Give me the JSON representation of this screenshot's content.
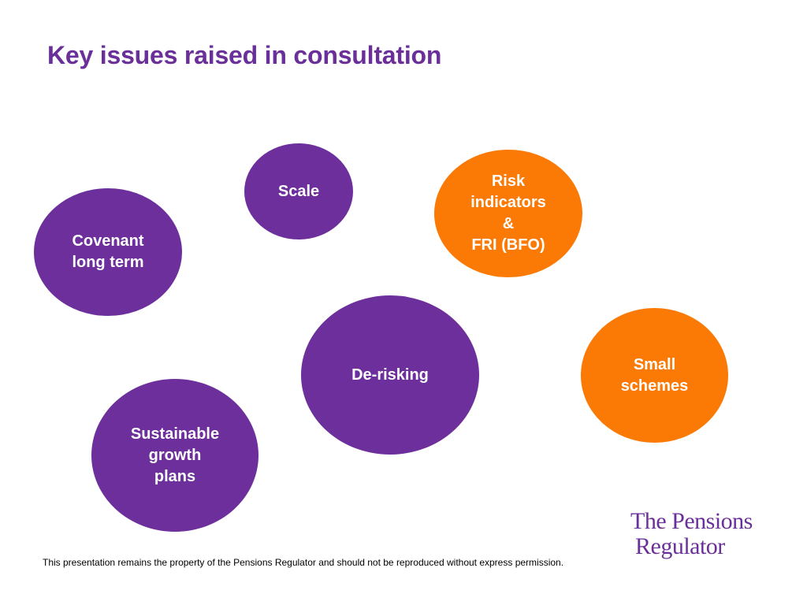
{
  "slide": {
    "title": "Key issues raised in consultation",
    "footer": "This presentation remains the property of the Pensions Regulator and should not be reproduced without express permission."
  },
  "colors": {
    "title": "#6a2f98",
    "purple_bubble": "#6d2f9c",
    "orange_bubble": "#fb7a05",
    "bubble_text": "#ffffff"
  },
  "bubbles": [
    {
      "label": "Scale",
      "color": "purple"
    },
    {
      "label": "Risk\nindicators\n&\nFRI (BFO)",
      "color": "orange"
    },
    {
      "label": "Covenant\nlong term",
      "color": "purple"
    },
    {
      "label": "De-risking",
      "color": "purple"
    },
    {
      "label": "Small\nschemes",
      "color": "orange"
    },
    {
      "label": "Sustainable\ngrowth\nplans",
      "color": "purple"
    }
  ],
  "logo": {
    "line1": "The Pensions",
    "line2": "Regulator"
  }
}
